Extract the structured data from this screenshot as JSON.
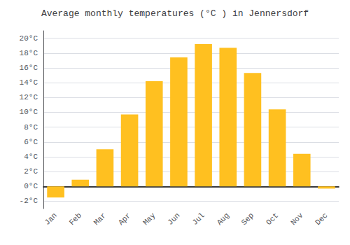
{
  "chart_data": {
    "type": "bar",
    "title": "Average monthly temperatures (°C ) in Jennersdorf",
    "categories": [
      "Jan",
      "Feb",
      "Mar",
      "Apr",
      "May",
      "Jun",
      "Jul",
      "Aug",
      "Sep",
      "Oct",
      "Nov",
      "Dec"
    ],
    "values": [
      -1.5,
      0.9,
      5.0,
      9.7,
      14.2,
      17.4,
      19.2,
      18.7,
      15.3,
      10.4,
      4.4,
      -0.3
    ],
    "color": "#FFC020",
    "ylim": [
      -3,
      21
    ],
    "yticks": [
      {
        "value": -2,
        "label": "-2°C"
      },
      {
        "value": 0,
        "label": "0°C"
      },
      {
        "value": 2,
        "label": "2°C"
      },
      {
        "value": 4,
        "label": "4°C"
      },
      {
        "value": 6,
        "label": "6°C"
      },
      {
        "value": 8,
        "label": "8°C"
      },
      {
        "value": 10,
        "label": "10°C"
      },
      {
        "value": 12,
        "label": "12°C"
      },
      {
        "value": 14,
        "label": "14°C"
      },
      {
        "value": 16,
        "label": "16°C"
      },
      {
        "value": 18,
        "label": "18°C"
      },
      {
        "value": 20,
        "label": "20°C"
      }
    ],
    "grid": true
  }
}
